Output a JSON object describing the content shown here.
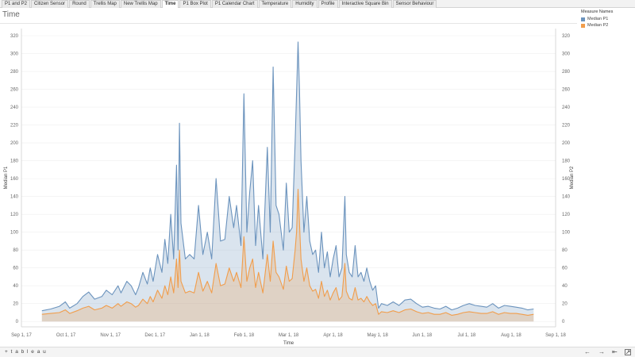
{
  "tabs": [
    "P1 and P2",
    "Citizen Sensor",
    "Round",
    "Trellis Map",
    "New Trellis Map",
    "Time",
    "P1 Box Plot",
    "P1 Calendar Chart",
    "Temperature",
    "Humidity",
    "Profile",
    "Interactive Square Bin",
    "Sensor Behaviour"
  ],
  "active_tab": "Time",
  "sheet_title": "Time",
  "legend": {
    "title": "Measure Names",
    "items": [
      {
        "label": "Median P1",
        "color": "#6b93bd"
      },
      {
        "label": "Median P2",
        "color": "#f19d4b"
      }
    ]
  },
  "footer": {
    "logo": "+ t a b l e a u",
    "back_icon": "←",
    "forward_icon": "→",
    "first_icon": "⇤",
    "share_icon": "share-icon"
  },
  "chart_data": {
    "type": "area",
    "xlabel": "Time",
    "ylabel": "Median P1",
    "y2label": "Median P2",
    "x_ticks": [
      "Sep 1, 17",
      "Oct 1, 17",
      "Nov 1, 17",
      "Dec 1, 17",
      "Jan 1, 18",
      "Feb 1, 18",
      "Mar 1, 18",
      "Apr 1, 18",
      "May 1, 18",
      "Jun 1, 18",
      "Jul 1, 18",
      "Aug 1, 18",
      "Sep 1, 18"
    ],
    "y_ticks": [
      0,
      20,
      40,
      60,
      80,
      100,
      120,
      140,
      160,
      180,
      200,
      220,
      240,
      260,
      280,
      300,
      320
    ],
    "ylim": [
      -6,
      328
    ],
    "x_range_days": [
      0,
      365
    ],
    "data_range_days": [
      14,
      350
    ],
    "series": [
      {
        "name": "Median P1",
        "color": "#6b93bd",
        "points": [
          [
            14,
            12
          ],
          [
            20,
            14
          ],
          [
            26,
            17
          ],
          [
            30,
            22
          ],
          [
            33,
            15
          ],
          [
            38,
            20
          ],
          [
            42,
            28
          ],
          [
            46,
            33
          ],
          [
            50,
            25
          ],
          [
            55,
            28
          ],
          [
            58,
            35
          ],
          [
            62,
            30
          ],
          [
            66,
            40
          ],
          [
            68,
            32
          ],
          [
            72,
            45
          ],
          [
            75,
            40
          ],
          [
            78,
            30
          ],
          [
            80,
            38
          ],
          [
            83,
            55
          ],
          [
            86,
            42
          ],
          [
            88,
            60
          ],
          [
            90,
            45
          ],
          [
            93,
            75
          ],
          [
            96,
            55
          ],
          [
            98,
            92
          ],
          [
            100,
            65
          ],
          [
            102,
            120
          ],
          [
            104,
            70
          ],
          [
            106,
            175
          ],
          [
            107,
            80
          ],
          [
            108,
            222
          ],
          [
            109,
            110
          ],
          [
            112,
            70
          ],
          [
            115,
            75
          ],
          [
            118,
            70
          ],
          [
            121,
            130
          ],
          [
            124,
            75
          ],
          [
            127,
            100
          ],
          [
            130,
            70
          ],
          [
            133,
            160
          ],
          [
            136,
            90
          ],
          [
            139,
            92
          ],
          [
            142,
            140
          ],
          [
            145,
            105
          ],
          [
            147,
            130
          ],
          [
            150,
            85
          ],
          [
            152,
            255
          ],
          [
            154,
            100
          ],
          [
            156,
            145
          ],
          [
            158,
            180
          ],
          [
            160,
            85
          ],
          [
            162,
            130
          ],
          [
            165,
            70
          ],
          [
            168,
            195
          ],
          [
            170,
            100
          ],
          [
            172,
            285
          ],
          [
            174,
            130
          ],
          [
            176,
            120
          ],
          [
            179,
            80
          ],
          [
            181,
            155
          ],
          [
            183,
            100
          ],
          [
            185,
            105
          ],
          [
            187,
            200
          ],
          [
            188,
            255
          ],
          [
            189,
            313
          ],
          [
            190,
            260
          ],
          [
            191,
            180
          ],
          [
            193,
            100
          ],
          [
            195,
            140
          ],
          [
            197,
            90
          ],
          [
            199,
            75
          ],
          [
            201,
            80
          ],
          [
            203,
            55
          ],
          [
            205,
            100
          ],
          [
            207,
            60
          ],
          [
            209,
            78
          ],
          [
            211,
            50
          ],
          [
            213,
            70
          ],
          [
            215,
            85
          ],
          [
            217,
            50
          ],
          [
            219,
            60
          ],
          [
            221,
            140
          ],
          [
            222,
            75
          ],
          [
            224,
            55
          ],
          [
            226,
            50
          ],
          [
            228,
            85
          ],
          [
            230,
            50
          ],
          [
            232,
            55
          ],
          [
            234,
            45
          ],
          [
            236,
            60
          ],
          [
            238,
            45
          ],
          [
            240,
            35
          ],
          [
            242,
            40
          ],
          [
            244,
            15
          ],
          [
            246,
            20
          ],
          [
            250,
            18
          ],
          [
            254,
            22
          ],
          [
            258,
            18
          ],
          [
            262,
            24
          ],
          [
            266,
            25
          ],
          [
            270,
            20
          ],
          [
            274,
            16
          ],
          [
            278,
            17
          ],
          [
            282,
            15
          ],
          [
            286,
            14
          ],
          [
            290,
            17
          ],
          [
            294,
            13
          ],
          [
            298,
            15
          ],
          [
            302,
            18
          ],
          [
            306,
            20
          ],
          [
            310,
            18
          ],
          [
            314,
            17
          ],
          [
            318,
            16
          ],
          [
            322,
            20
          ],
          [
            326,
            15
          ],
          [
            330,
            18
          ],
          [
            334,
            17
          ],
          [
            338,
            16
          ],
          [
            342,
            15
          ],
          [
            346,
            13
          ],
          [
            350,
            14
          ]
        ]
      },
      {
        "name": "Median P2",
        "color": "#f19d4b",
        "points": [
          [
            14,
            8
          ],
          [
            20,
            9
          ],
          [
            26,
            10
          ],
          [
            30,
            13
          ],
          [
            33,
            9
          ],
          [
            38,
            12
          ],
          [
            42,
            15
          ],
          [
            46,
            17
          ],
          [
            50,
            13
          ],
          [
            55,
            15
          ],
          [
            58,
            18
          ],
          [
            62,
            15
          ],
          [
            66,
            20
          ],
          [
            68,
            17
          ],
          [
            72,
            22
          ],
          [
            75,
            20
          ],
          [
            78,
            16
          ],
          [
            80,
            18
          ],
          [
            83,
            25
          ],
          [
            86,
            20
          ],
          [
            88,
            28
          ],
          [
            90,
            22
          ],
          [
            93,
            35
          ],
          [
            96,
            26
          ],
          [
            98,
            40
          ],
          [
            100,
            30
          ],
          [
            102,
            50
          ],
          [
            104,
            32
          ],
          [
            106,
            70
          ],
          [
            107,
            38
          ],
          [
            108,
            80
          ],
          [
            109,
            45
          ],
          [
            112,
            32
          ],
          [
            115,
            34
          ],
          [
            118,
            32
          ],
          [
            121,
            55
          ],
          [
            124,
            34
          ],
          [
            127,
            45
          ],
          [
            130,
            32
          ],
          [
            133,
            65
          ],
          [
            136,
            40
          ],
          [
            139,
            42
          ],
          [
            142,
            60
          ],
          [
            145,
            45
          ],
          [
            147,
            55
          ],
          [
            150,
            38
          ],
          [
            152,
            95
          ],
          [
            154,
            45
          ],
          [
            156,
            60
          ],
          [
            158,
            70
          ],
          [
            160,
            38
          ],
          [
            162,
            55
          ],
          [
            165,
            32
          ],
          [
            168,
            75
          ],
          [
            170,
            45
          ],
          [
            172,
            90
          ],
          [
            174,
            55
          ],
          [
            176,
            50
          ],
          [
            179,
            36
          ],
          [
            181,
            62
          ],
          [
            183,
            45
          ],
          [
            185,
            48
          ],
          [
            187,
            80
          ],
          [
            188,
            100
          ],
          [
            189,
            148
          ],
          [
            190,
            110
          ],
          [
            191,
            70
          ],
          [
            193,
            45
          ],
          [
            195,
            60
          ],
          [
            197,
            40
          ],
          [
            199,
            34
          ],
          [
            201,
            36
          ],
          [
            203,
            26
          ],
          [
            205,
            45
          ],
          [
            207,
            28
          ],
          [
            209,
            35
          ],
          [
            211,
            24
          ],
          [
            213,
            32
          ],
          [
            215,
            38
          ],
          [
            217,
            24
          ],
          [
            219,
            28
          ],
          [
            221,
            65
          ],
          [
            222,
            34
          ],
          [
            224,
            26
          ],
          [
            226,
            24
          ],
          [
            228,
            38
          ],
          [
            230,
            24
          ],
          [
            232,
            26
          ],
          [
            234,
            22
          ],
          [
            236,
            28
          ],
          [
            238,
            22
          ],
          [
            240,
            18
          ],
          [
            242,
            20
          ],
          [
            244,
            8
          ],
          [
            246,
            11
          ],
          [
            250,
            10
          ],
          [
            254,
            12
          ],
          [
            258,
            10
          ],
          [
            262,
            13
          ],
          [
            266,
            14
          ],
          [
            270,
            11
          ],
          [
            274,
            9
          ],
          [
            278,
            10
          ],
          [
            282,
            8
          ],
          [
            286,
            8
          ],
          [
            290,
            10
          ],
          [
            294,
            7
          ],
          [
            298,
            8
          ],
          [
            302,
            10
          ],
          [
            306,
            11
          ],
          [
            310,
            10
          ],
          [
            314,
            9
          ],
          [
            318,
            9
          ],
          [
            322,
            11
          ],
          [
            326,
            8
          ],
          [
            330,
            10
          ],
          [
            334,
            9
          ],
          [
            338,
            9
          ],
          [
            342,
            8
          ],
          [
            346,
            7
          ],
          [
            350,
            8
          ]
        ]
      }
    ],
    "grid": true,
    "legend_position": "top-right"
  }
}
